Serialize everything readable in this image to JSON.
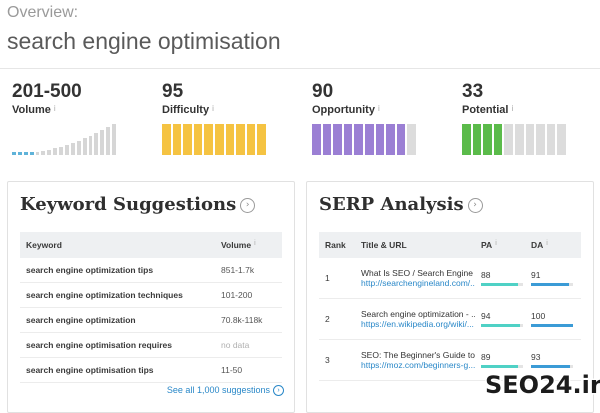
{
  "overview": {
    "label": "Overview:",
    "keyword": "search engine optimisation"
  },
  "metrics": [
    {
      "value": "201-500",
      "label": "Volume",
      "info": "i"
    },
    {
      "value": "95",
      "label": "Difficulty",
      "info": "i",
      "color": "#f5c342",
      "filled": 10,
      "total": 10
    },
    {
      "value": "90",
      "label": "Opportunity",
      "info": "i",
      "color": "#9b7fd4",
      "filled": 9,
      "total": 10
    },
    {
      "value": "33",
      "label": "Potential",
      "info": "i",
      "color": "#5bbb4a",
      "filled": 4,
      "total": 10
    }
  ],
  "keyword_suggestions": {
    "title": "Keyword Suggestions",
    "columns": {
      "keyword": "Keyword",
      "volume": "Volume"
    },
    "info": "i",
    "rows": [
      {
        "keyword": "search engine optimization tips",
        "volume": "851-1.7k"
      },
      {
        "keyword": "search engine optimization techniques",
        "volume": "101-200"
      },
      {
        "keyword": "search engine optimization",
        "volume": "70.8k-118k"
      },
      {
        "keyword": "search engine optimisation requires",
        "volume": "no data"
      },
      {
        "keyword": "search engine optimisation tips",
        "volume": "11-50"
      }
    ],
    "see_all": "See all 1,000 suggestions"
  },
  "serp_analysis": {
    "title": "SERP Analysis",
    "columns": {
      "rank": "Rank",
      "title_url": "Title & URL",
      "pa": "PA",
      "da": "DA"
    },
    "info": "i",
    "rows": [
      {
        "rank": "1",
        "title": "What Is SEO / Search Engine ...",
        "url": "http://searchengineland.com/...",
        "pa": "88",
        "da": "91"
      },
      {
        "rank": "2",
        "title": "Search engine optimization - ...",
        "url": "https://en.wikipedia.org/wiki/...",
        "pa": "94",
        "da": "100"
      },
      {
        "rank": "3",
        "title": "SEO: The Beginner's Guide to...",
        "url": "https://moz.com/beginners-g...",
        "pa": "89",
        "da": "93"
      }
    ]
  },
  "colors": {
    "accent_blue": "#2a88c8",
    "pa_bar": "#4fd1c5",
    "da_bar": "#3b9bd6"
  },
  "watermark": {
    "text": "SEO24.ir"
  }
}
